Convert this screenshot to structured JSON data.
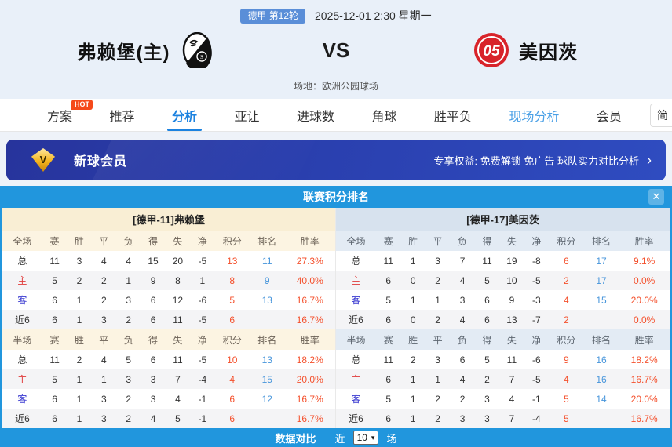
{
  "match_header": {
    "league_badge": "德甲 第12轮",
    "datetime": "2025-12-01 2:30 星期一",
    "home_team": "弗赖堡(主)",
    "vs": "VS",
    "away_team": "美因茨",
    "venue": "场地：欧洲公园球场"
  },
  "nav": {
    "tabs": [
      {
        "label": "方案",
        "badge": "HOT"
      },
      {
        "label": "推荐"
      },
      {
        "label": "分析"
      },
      {
        "label": "亚让"
      },
      {
        "label": "进球数"
      },
      {
        "label": "角球"
      },
      {
        "label": "胜平负"
      },
      {
        "label": "现场分析"
      },
      {
        "label": "会员"
      }
    ],
    "lang_button": "简"
  },
  "vip_banner": {
    "icon_letter": "V",
    "title": "新球会员",
    "benefits": "专享权益: 免费解锁 免广告 球队实力对比分析",
    "chevron": "›"
  },
  "standings": {
    "title": "联赛积分排名",
    "close_icon": "✕",
    "left": {
      "team_header": "[德甲-11]弗赖堡",
      "full": {
        "columns": [
          "全场",
          "赛",
          "胜",
          "平",
          "负",
          "得",
          "失",
          "净",
          "积分",
          "排名",
          "胜率"
        ],
        "rows": [
          {
            "label": "总",
            "type": "total",
            "stats": [
              "11",
              "3",
              "4",
              "4",
              "15",
              "20",
              "-5"
            ],
            "points": "13",
            "rank": "11",
            "rate": "27.3%"
          },
          {
            "label": "主",
            "type": "home",
            "stats": [
              "5",
              "2",
              "2",
              "1",
              "9",
              "8",
              "1"
            ],
            "points": "8",
            "rank": "9",
            "rate": "40.0%"
          },
          {
            "label": "客",
            "type": "away",
            "stats": [
              "6",
              "1",
              "2",
              "3",
              "6",
              "12",
              "-6"
            ],
            "points": "5",
            "rank": "13",
            "rate": "16.7%"
          },
          {
            "label": "近6",
            "type": "recent",
            "stats": [
              "6",
              "1",
              "3",
              "2",
              "6",
              "11",
              "-5"
            ],
            "points": "6",
            "rank": "",
            "rate": "16.7%"
          }
        ]
      },
      "half": {
        "columns": [
          "半场",
          "赛",
          "胜",
          "平",
          "负",
          "得",
          "失",
          "净",
          "积分",
          "排名",
          "胜率"
        ],
        "rows": [
          {
            "label": "总",
            "type": "total",
            "stats": [
              "11",
              "2",
              "4",
              "5",
              "6",
              "11",
              "-5"
            ],
            "points": "10",
            "rank": "13",
            "rate": "18.2%"
          },
          {
            "label": "主",
            "type": "home",
            "stats": [
              "5",
              "1",
              "1",
              "3",
              "3",
              "7",
              "-4"
            ],
            "points": "4",
            "rank": "15",
            "rate": "20.0%"
          },
          {
            "label": "客",
            "type": "away",
            "stats": [
              "6",
              "1",
              "3",
              "2",
              "3",
              "4",
              "-1"
            ],
            "points": "6",
            "rank": "12",
            "rate": "16.7%"
          },
          {
            "label": "近6",
            "type": "recent",
            "stats": [
              "6",
              "1",
              "3",
              "2",
              "4",
              "5",
              "-1"
            ],
            "points": "6",
            "rank": "",
            "rate": "16.7%"
          }
        ]
      }
    },
    "right": {
      "team_header": "[德甲-17]美因茨",
      "full": {
        "columns": [
          "全场",
          "赛",
          "胜",
          "平",
          "负",
          "得",
          "失",
          "净",
          "积分",
          "排名",
          "胜率"
        ],
        "rows": [
          {
            "label": "总",
            "type": "total",
            "stats": [
              "11",
              "1",
              "3",
              "7",
              "11",
              "19",
              "-8"
            ],
            "points": "6",
            "rank": "17",
            "rate": "9.1%"
          },
          {
            "label": "主",
            "type": "home",
            "stats": [
              "6",
              "0",
              "2",
              "4",
              "5",
              "10",
              "-5"
            ],
            "points": "2",
            "rank": "17",
            "rate": "0.0%"
          },
          {
            "label": "客",
            "type": "away",
            "stats": [
              "5",
              "1",
              "1",
              "3",
              "6",
              "9",
              "-3"
            ],
            "points": "4",
            "rank": "15",
            "rate": "20.0%"
          },
          {
            "label": "近6",
            "type": "recent",
            "stats": [
              "6",
              "0",
              "2",
              "4",
              "6",
              "13",
              "-7"
            ],
            "points": "2",
            "rank": "",
            "rate": "0.0%"
          }
        ]
      },
      "half": {
        "columns": [
          "半场",
          "赛",
          "胜",
          "平",
          "负",
          "得",
          "失",
          "净",
          "积分",
          "排名",
          "胜率"
        ],
        "rows": [
          {
            "label": "总",
            "type": "total",
            "stats": [
              "11",
              "2",
              "3",
              "6",
              "5",
              "11",
              "-6"
            ],
            "points": "9",
            "rank": "16",
            "rate": "18.2%"
          },
          {
            "label": "主",
            "type": "home",
            "stats": [
              "6",
              "1",
              "1",
              "4",
              "2",
              "7",
              "-5"
            ],
            "points": "4",
            "rank": "16",
            "rate": "16.7%"
          },
          {
            "label": "客",
            "type": "away",
            "stats": [
              "5",
              "1",
              "2",
              "2",
              "3",
              "4",
              "-1"
            ],
            "points": "5",
            "rank": "14",
            "rate": "20.0%"
          },
          {
            "label": "近6",
            "type": "recent",
            "stats": [
              "6",
              "1",
              "2",
              "3",
              "3",
              "7",
              "-4"
            ],
            "points": "5",
            "rank": "",
            "rate": "16.7%"
          }
        ]
      }
    }
  },
  "footer": {
    "label": "数据对比",
    "near_label": "近",
    "select_value": "10",
    "select_arrow": "▾",
    "suffix": "场"
  },
  "colors": {
    "accent_blue": "#2196dd",
    "points_red": "#f4502c",
    "rank_blue": "#4795db",
    "banner_navy": "#2a3fae",
    "badge_blue": "#5a8ed8",
    "hot_red": "#f5491a"
  }
}
